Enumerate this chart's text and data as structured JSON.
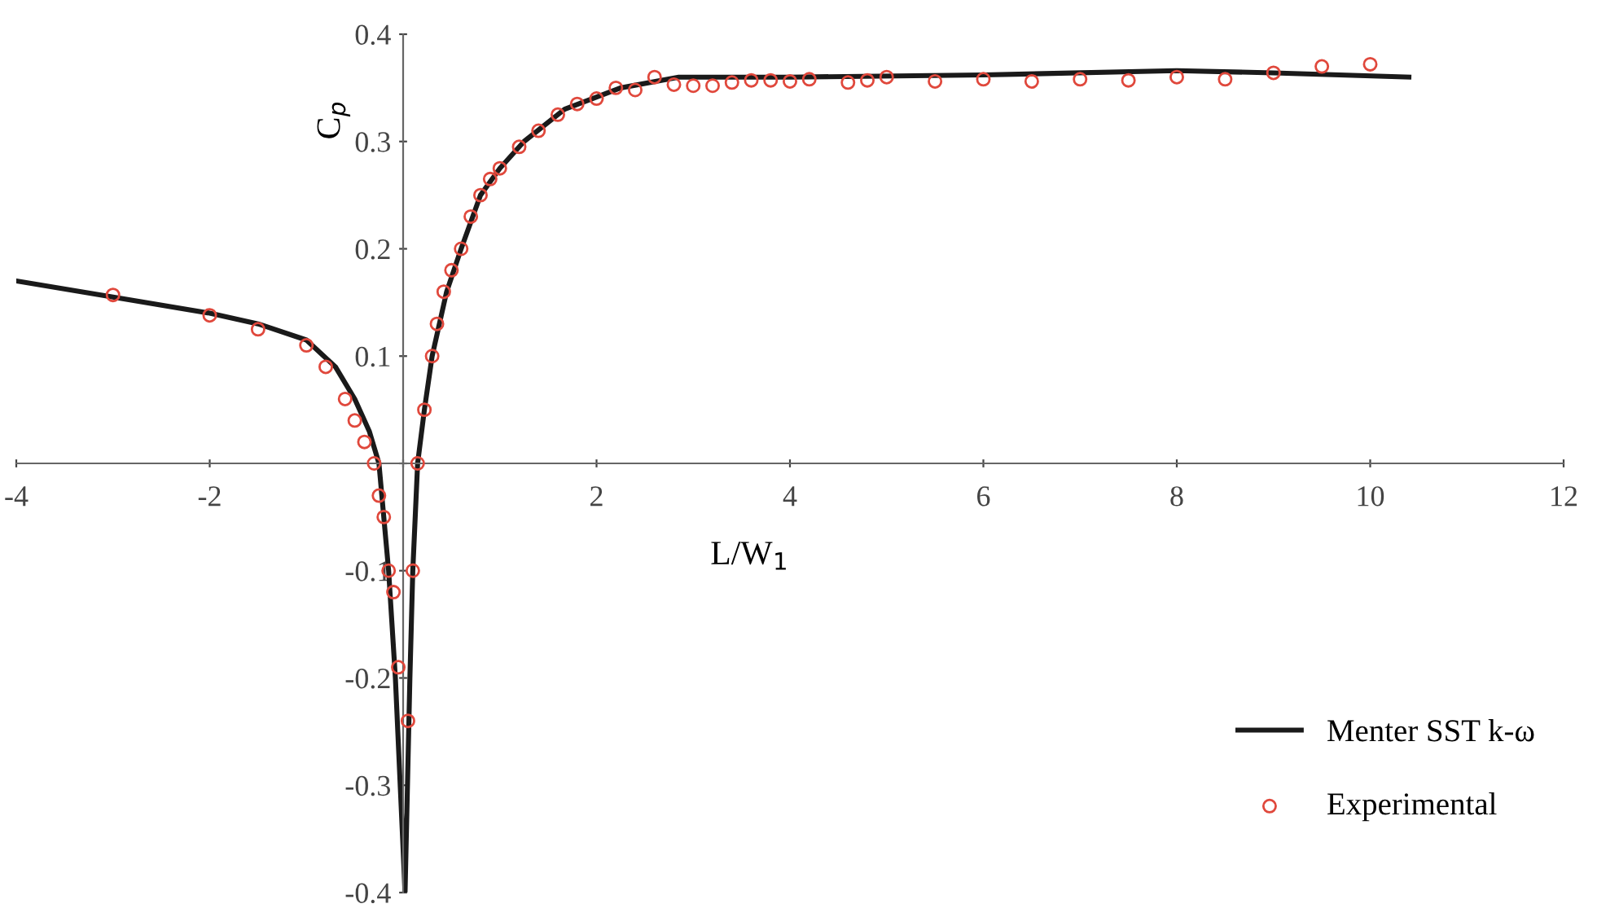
{
  "chart_data": {
    "type": "line",
    "xlabel": "L/W$_{1}$",
    "ylabel": "C$_{p}$",
    "xlim": [
      -4,
      12
    ],
    "ylim": [
      -0.4,
      0.4
    ],
    "xticks": [
      -4,
      -2,
      {
        "value": 0,
        "label": null
      },
      2,
      4,
      6,
      8,
      10,
      12
    ],
    "yticks": [
      -0.4,
      -0.3,
      -0.2,
      -0.1,
      {
        "value": 0,
        "label": null
      },
      0.1,
      0.2,
      0.3,
      0.4
    ],
    "grid": false,
    "legend": "bottom right",
    "series": [
      {
        "name": "Menter SST k-ω",
        "color": "#1a1a1a",
        "marker": "none",
        "line_style": "solid",
        "x": [
          -4,
          -3,
          -2,
          -1.5,
          -1,
          -0.7,
          -0.5,
          -0.35,
          -0.25,
          -0.15,
          -0.08,
          0.02,
          0.07,
          0.1,
          0.15,
          0.22,
          0.3,
          0.45,
          0.6,
          0.8,
          1.0,
          1.25,
          1.67,
          2.25,
          2.85,
          4,
          6,
          8,
          9,
          10.4
        ],
        "values": [
          0.17,
          0.155,
          0.14,
          0.13,
          0.115,
          0.09,
          0.06,
          0.03,
          0,
          -0.1,
          -0.2,
          -0.4,
          -0.2,
          -0.1,
          0,
          0.05,
          0.1,
          0.16,
          0.2,
          0.25,
          0.275,
          0.3,
          0.33,
          0.35,
          0.36,
          0.36,
          0.362,
          0.366,
          0.364,
          0.36
        ]
      },
      {
        "name": "Experimental",
        "type": "scatter",
        "color": "#e0483c",
        "marker": "circle",
        "x": [
          -3,
          -2,
          -1.5,
          -1,
          -0.8,
          -0.6,
          -0.5,
          -0.4,
          -0.3,
          -0.25,
          -0.2,
          -0.15,
          -0.1,
          -0.05,
          0.05,
          0.1,
          0.15,
          0.22,
          0.3,
          0.35,
          0.42,
          0.5,
          0.6,
          0.7,
          0.8,
          0.9,
          1.0,
          1.2,
          1.4,
          1.6,
          1.8,
          2.0,
          2.2,
          2.4,
          2.6,
          2.8,
          3.0,
          3.2,
          3.4,
          3.6,
          3.8,
          4.0,
          4.2,
          4.6,
          4.8,
          5.0,
          5.5,
          6,
          6.5,
          7,
          7.5,
          8,
          8.5,
          9,
          9.5,
          10
        ],
        "values": [
          0.157,
          0.138,
          0.125,
          0.11,
          0.09,
          0.06,
          0.04,
          0.02,
          0,
          -0.03,
          -0.05,
          -0.1,
          -0.12,
          -0.19,
          -0.24,
          -0.1,
          0,
          0.05,
          0.1,
          0.13,
          0.16,
          0.18,
          0.2,
          0.23,
          0.25,
          0.265,
          0.275,
          0.295,
          0.31,
          0.325,
          0.335,
          0.34,
          0.35,
          0.348,
          0.36,
          0.353,
          0.352,
          0.352,
          0.355,
          0.357,
          0.357,
          0.356,
          0.358,
          0.355,
          0.357,
          0.36,
          0.356,
          0.358,
          0.356,
          0.358,
          0.357,
          0.36,
          0.358,
          0.364,
          0.37,
          0.372
        ]
      }
    ]
  }
}
